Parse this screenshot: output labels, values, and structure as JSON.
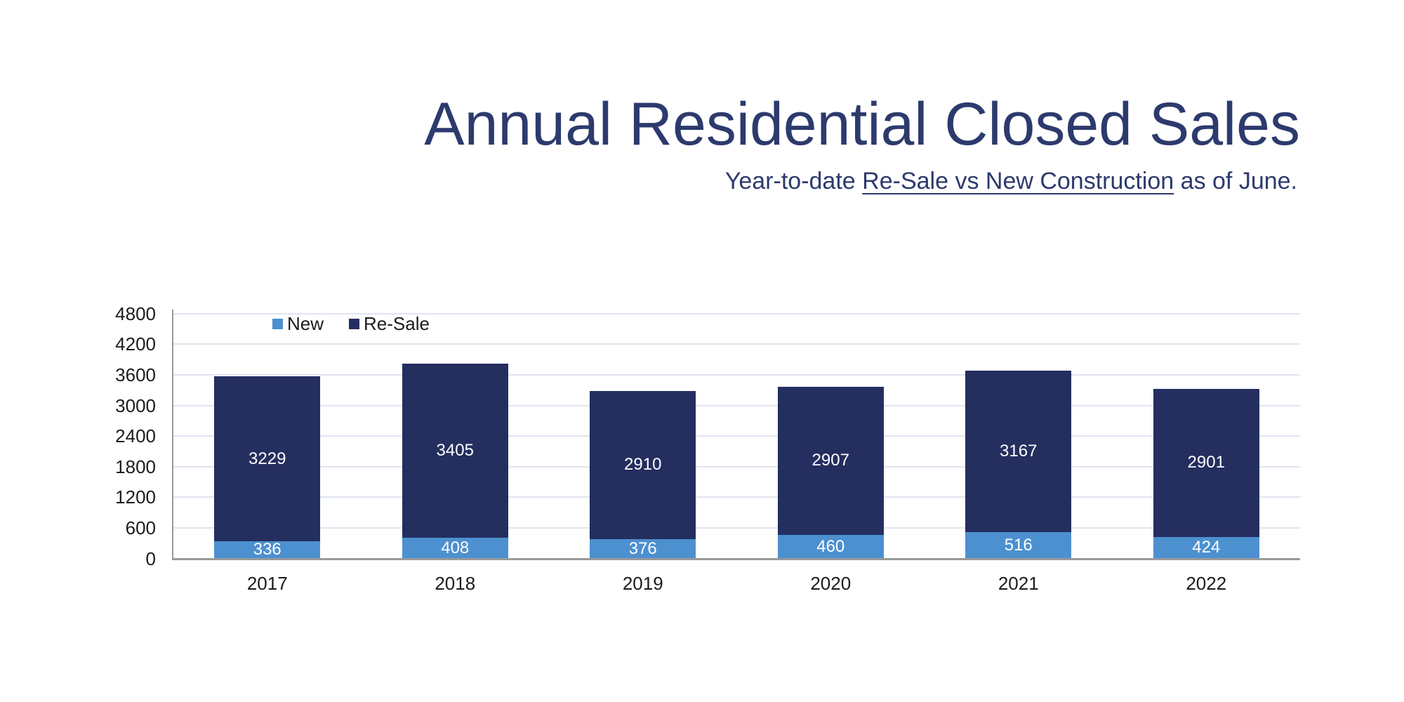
{
  "header": {
    "title": "Annual Residential Closed Sales",
    "subtitle": {
      "prefix": "Year-to-date ",
      "underlined": "Re-Sale vs New Construction",
      "suffix": " as of June."
    }
  },
  "chart_data": {
    "type": "bar",
    "stacked": true,
    "title": "Annual Residential Closed Sales",
    "subtitle": "Year-to-date Re-Sale vs New Construction as of June.",
    "categories": [
      "2017",
      "2018",
      "2019",
      "2020",
      "2021",
      "2022"
    ],
    "series": [
      {
        "name": "New",
        "color": "#4d90d0",
        "values": [
          336,
          408,
          376,
          460,
          516,
          424
        ]
      },
      {
        "name": "Re-Sale",
        "color": "#242e5f",
        "values": [
          3229,
          3405,
          2910,
          2907,
          3167,
          2901
        ]
      }
    ],
    "y_ticks": [
      0,
      600,
      1200,
      1800,
      2400,
      3000,
      3600,
      4200,
      4800
    ],
    "ylim": [
      0,
      4800
    ],
    "xlabel": "",
    "ylabel": "",
    "grid": true,
    "legend_position": "top-inside-left",
    "value_labels": true
  },
  "colors": {
    "title_text": "#2c3a6d",
    "tick_text": "#1b1b1b",
    "gridline": "#dfe5ef",
    "axis": "#9a9a9a",
    "bar_value_label": "#ffffff",
    "background": "#ffffff"
  }
}
